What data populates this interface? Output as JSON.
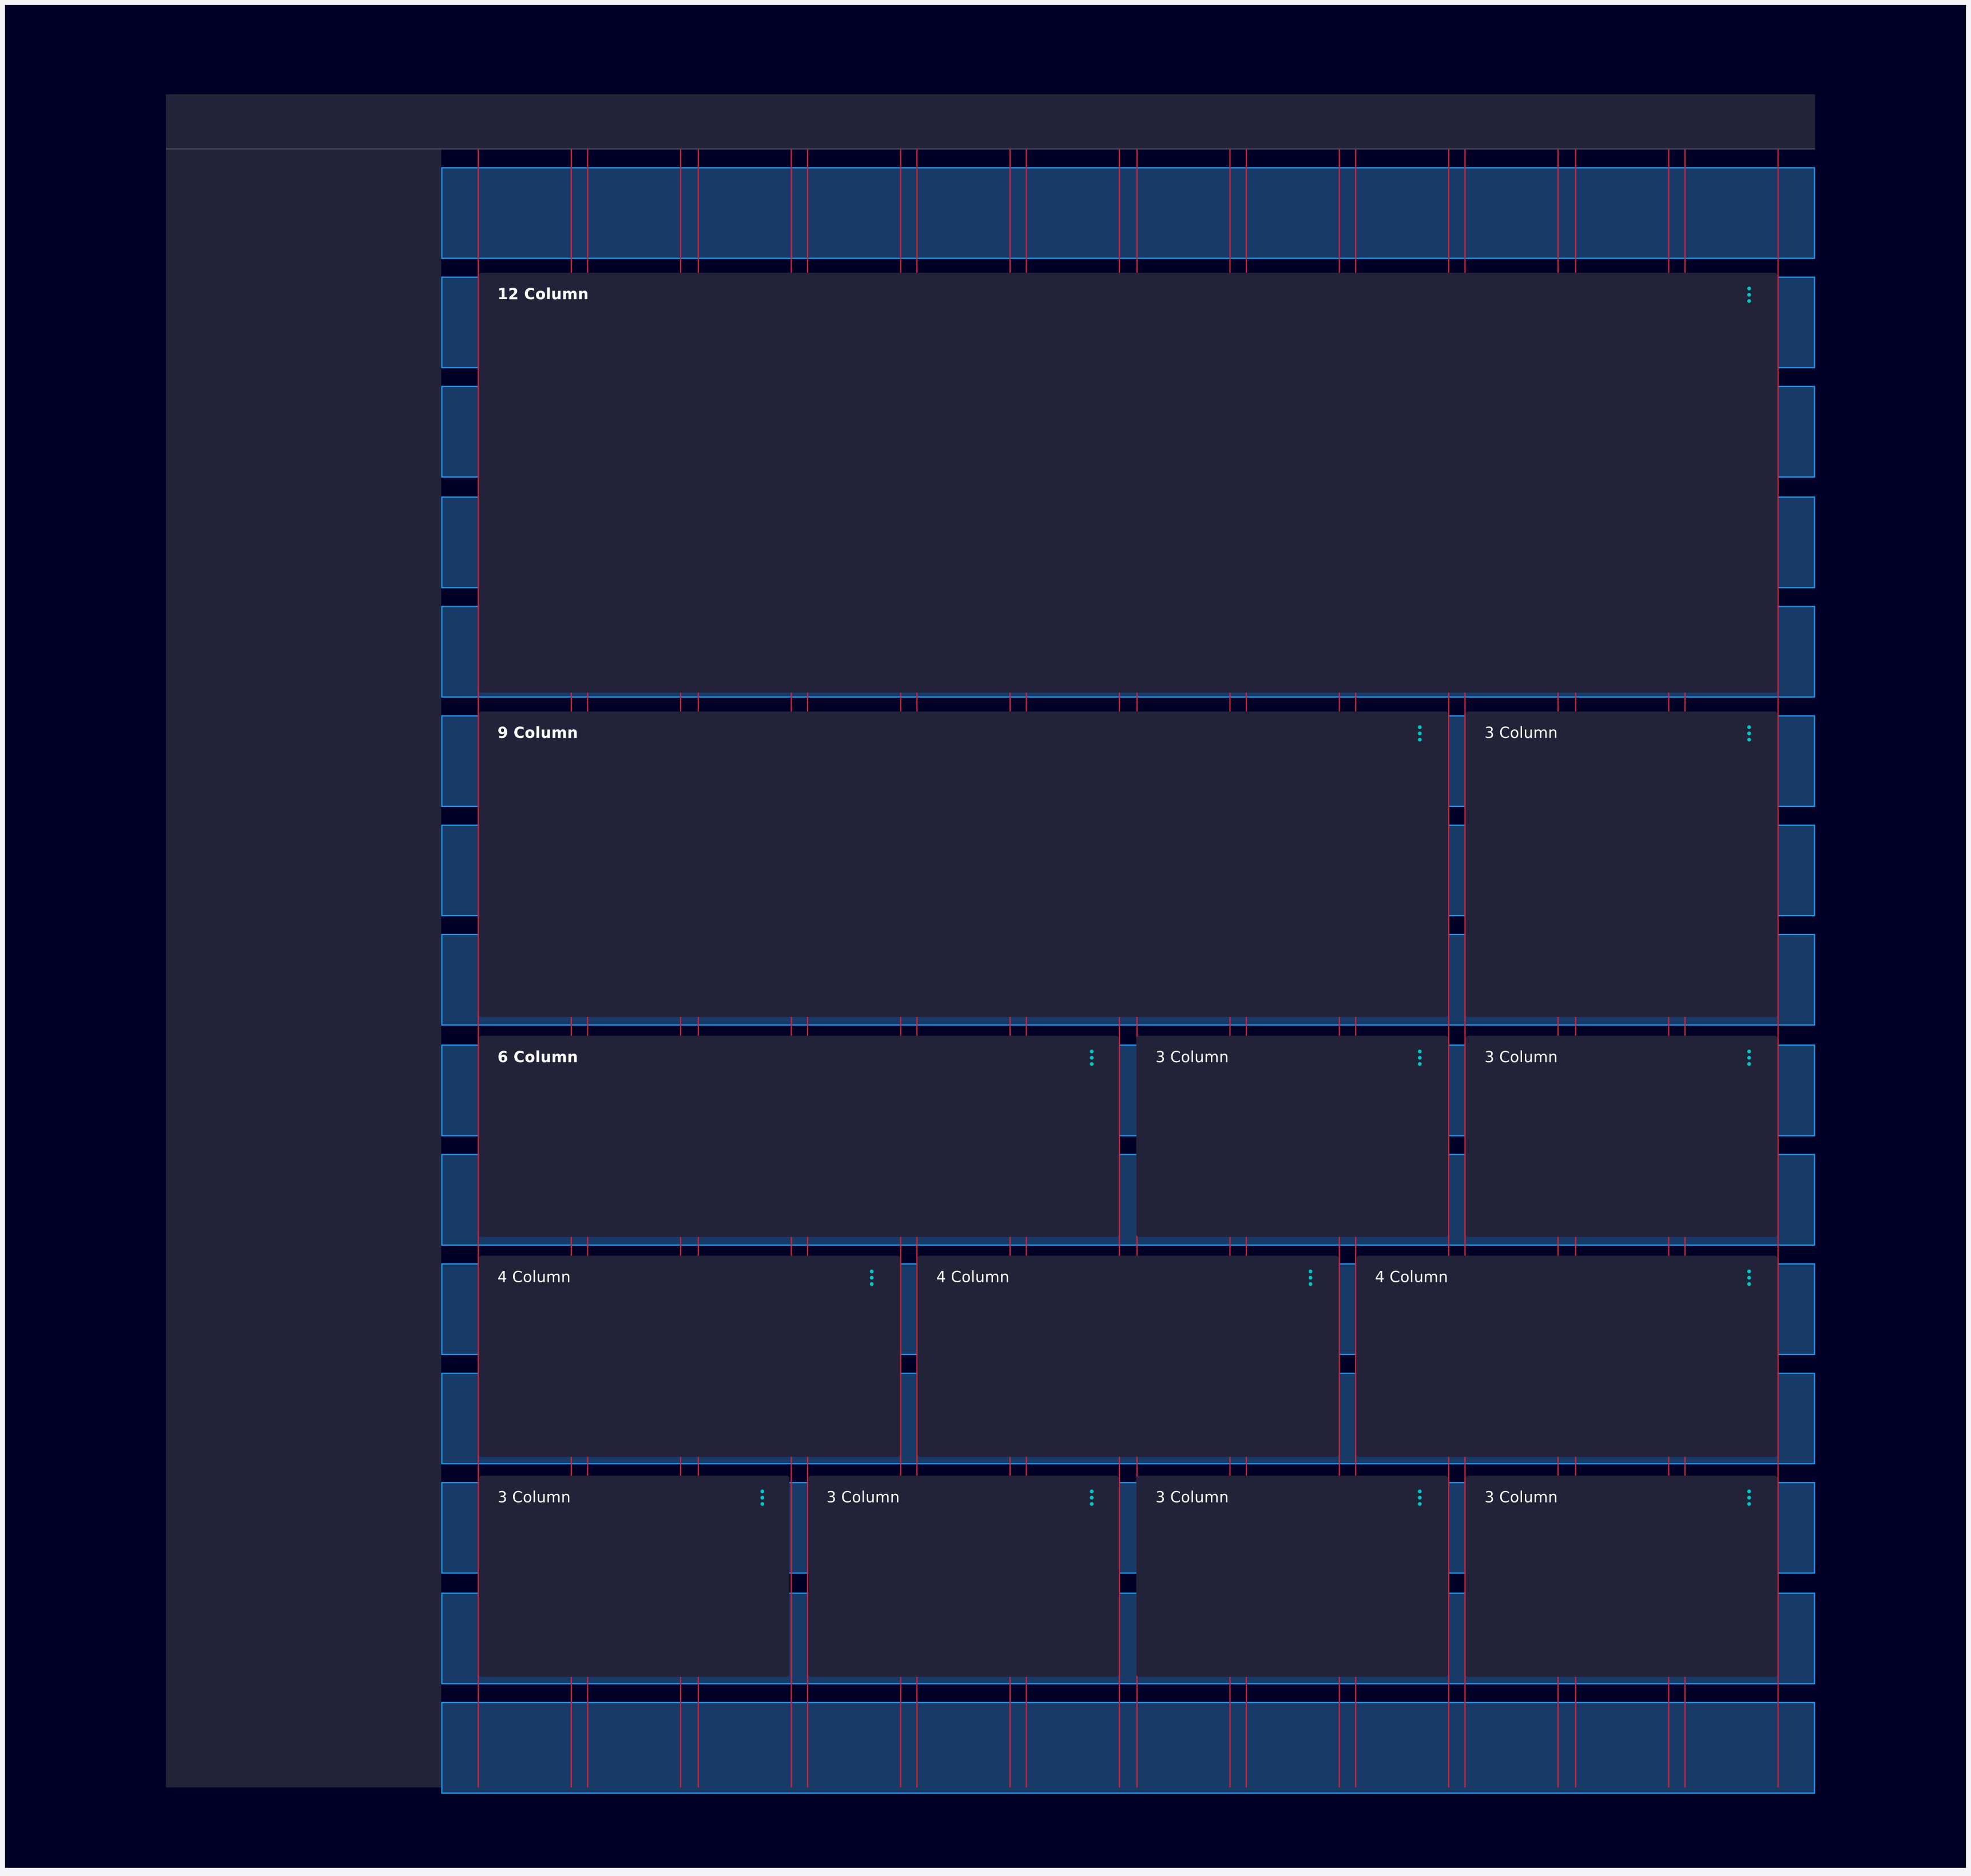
{
  "colors": {
    "background": "#000026",
    "surface": "#232339",
    "card": "#222239",
    "grid_band": "#183a66",
    "grid_band_border": "#1b9af2",
    "column_line": "#d4223a",
    "kebab_icon": "#00c8c8"
  },
  "grid": {
    "columns": 12
  },
  "rows": [
    {
      "cards": [
        {
          "title": "12 Column",
          "span": 12,
          "bold": true,
          "icon": "kebab-menu-icon"
        }
      ]
    },
    {
      "cards": [
        {
          "title": "9 Column",
          "span": 9,
          "bold": true,
          "icon": "kebab-menu-icon"
        },
        {
          "title": "3 Column",
          "span": 3,
          "bold": false,
          "icon": "kebab-menu-icon"
        }
      ]
    },
    {
      "cards": [
        {
          "title": "6 Column",
          "span": 6,
          "bold": true,
          "icon": "kebab-menu-icon"
        },
        {
          "title": "3 Column",
          "span": 3,
          "bold": false,
          "icon": "kebab-menu-icon"
        },
        {
          "title": "3 Column",
          "span": 3,
          "bold": false,
          "icon": "kebab-menu-icon"
        }
      ]
    },
    {
      "cards": [
        {
          "title": "4 Column",
          "span": 4,
          "bold": false,
          "icon": "kebab-menu-icon"
        },
        {
          "title": "4 Column",
          "span": 4,
          "bold": false,
          "icon": "kebab-menu-icon"
        },
        {
          "title": "4 Column",
          "span": 4,
          "bold": false,
          "icon": "kebab-menu-icon"
        }
      ]
    },
    {
      "cards": [
        {
          "title": "3 Column",
          "span": 3,
          "bold": false,
          "icon": "kebab-menu-icon"
        },
        {
          "title": "3 Column",
          "span": 3,
          "bold": false,
          "icon": "kebab-menu-icon"
        },
        {
          "title": "3 Column",
          "span": 3,
          "bold": false,
          "icon": "kebab-menu-icon"
        },
        {
          "title": "3 Column",
          "span": 3,
          "bold": false,
          "icon": "kebab-menu-icon"
        }
      ]
    }
  ]
}
